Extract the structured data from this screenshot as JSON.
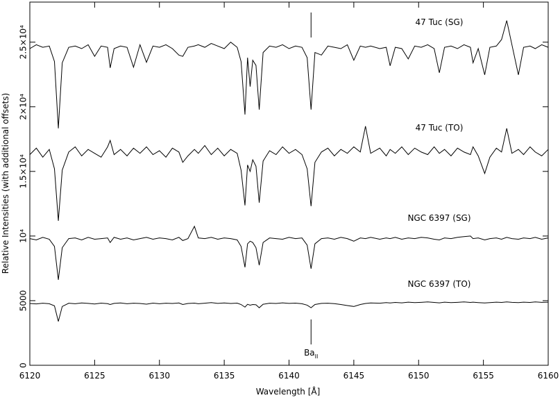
{
  "chart_data": {
    "type": "line",
    "xlabel": "Wavelength  [Å]",
    "ylabel": "Relative Intensities (with additional offsets)",
    "xlim": [
      6120,
      6160
    ],
    "ylim": [
      0,
      28100
    ],
    "xticks": [
      6120,
      6125,
      6130,
      6135,
      6140,
      6145,
      6150,
      6155,
      6160
    ],
    "yticks": [
      0,
      5000,
      {
        "value": 10000,
        "label": "10⁴"
      },
      {
        "value": 15000,
        "label": "1.5×10⁴"
      },
      {
        "value": 20000,
        "label": "2×10⁴"
      },
      {
        "value": 25000,
        "label": "2.5×10⁴"
      }
    ],
    "annotation": {
      "text": "Ba",
      "subscript": "II",
      "x": 6141.7
    },
    "x": [
      6120,
      6120.5,
      6121,
      6121.5,
      6121.9,
      6122.2,
      6122.5,
      6123,
      6123.5,
      6124,
      6124.5,
      6125,
      6125.5,
      6126,
      6126.2,
      6126.5,
      6127,
      6127.5,
      6128,
      6128.5,
      6129,
      6129.5,
      6130,
      6130.5,
      6131,
      6131.5,
      6131.8,
      6132.2,
      6132.7,
      6133,
      6133.5,
      6134,
      6134.5,
      6135,
      6135.5,
      6136,
      6136.3,
      6136.6,
      6136.8,
      6137,
      6137.2,
      6137.45,
      6137.7,
      6138,
      6138.5,
      6139,
      6139.5,
      6140,
      6140.5,
      6141,
      6141.4,
      6141.7,
      6142,
      6142.5,
      6143,
      6143.5,
      6144,
      6144.5,
      6145,
      6145.5,
      6145.9,
      6146.3,
      6147,
      6147.5,
      6147.8,
      6148.2,
      6148.7,
      6149.2,
      6149.7,
      6150.2,
      6150.7,
      6151.2,
      6151.6,
      6152,
      6152.5,
      6153,
      6153.5,
      6154,
      6154.2,
      6154.6,
      6155.1,
      6155.5,
      6156,
      6156.4,
      6156.8,
      6157.2,
      6157.7,
      6158.1,
      6158.6,
      6159,
      6159.5,
      6160
    ],
    "series": [
      {
        "name": "47 Tuc (SG)",
        "color": "#000000",
        "values": [
          24500,
          24800,
          24600,
          24700,
          23500,
          18330,
          23400,
          24600,
          24700,
          24500,
          24800,
          23900,
          24700,
          24600,
          23010,
          24500,
          24700,
          24600,
          23060,
          24800,
          23440,
          24700,
          24600,
          24800,
          24500,
          24000,
          23900,
          24600,
          24700,
          24800,
          24600,
          24900,
          24700,
          24500,
          25000,
          24600,
          23500,
          19400,
          23800,
          21560,
          23600,
          23200,
          19780,
          24200,
          24700,
          24600,
          24800,
          24500,
          24700,
          24600,
          23800,
          19780,
          24200,
          24000,
          24700,
          24600,
          24500,
          24800,
          23600,
          24700,
          24600,
          24700,
          24500,
          24600,
          23170,
          24600,
          24500,
          23700,
          24700,
          24600,
          24800,
          24500,
          22630,
          24600,
          24700,
          24500,
          24800,
          24600,
          23400,
          24500,
          22470,
          24600,
          24700,
          25200,
          26670,
          24800,
          22470,
          24600,
          24700,
          24500,
          24800,
          24600
        ]
      },
      {
        "name": "47 Tuc (TO)",
        "color": "#000000",
        "values": [
          16300,
          16800,
          16100,
          16700,
          15200,
          11180,
          15100,
          16500,
          16900,
          16200,
          16700,
          16400,
          16100,
          16900,
          17400,
          16300,
          16700,
          16200,
          16800,
          16400,
          16900,
          16300,
          16600,
          16100,
          16800,
          16500,
          15700,
          16200,
          16700,
          16400,
          17000,
          16300,
          16800,
          16200,
          16700,
          16400,
          15100,
          12370,
          15500,
          15000,
          15900,
          15400,
          12580,
          15800,
          16600,
          16300,
          16900,
          16400,
          16700,
          16300,
          15200,
          12310,
          15700,
          16500,
          16800,
          16200,
          16700,
          16400,
          16900,
          16500,
          18500,
          16400,
          16800,
          16200,
          16700,
          16400,
          16900,
          16300,
          16800,
          16500,
          16300,
          16900,
          16400,
          16700,
          16200,
          16800,
          16500,
          16300,
          16900,
          16200,
          14840,
          16100,
          16800,
          16500,
          18330,
          16400,
          16700,
          16300,
          16900,
          16500,
          16200,
          16700
        ]
      },
      {
        "name": "NGC 6397 (SG)",
        "color": "#000000",
        "values": [
          9800,
          9700,
          9900,
          9750,
          9200,
          6610,
          9100,
          9800,
          9850,
          9700,
          9900,
          9750,
          9800,
          9850,
          9500,
          9900,
          9750,
          9850,
          9700,
          9800,
          9900,
          9750,
          9850,
          9800,
          9700,
          9900,
          9650,
          9800,
          10750,
          9850,
          9800,
          9900,
          9750,
          9850,
          9800,
          9700,
          9200,
          7580,
          9400,
          9600,
          9500,
          9100,
          7740,
          9500,
          9850,
          9800,
          9750,
          9900,
          9800,
          9850,
          9300,
          7470,
          9400,
          9800,
          9850,
          9750,
          9900,
          9800,
          9600,
          9850,
          9800,
          9900,
          9750,
          9850,
          9800,
          9900,
          9750,
          9850,
          9800,
          9900,
          9850,
          9750,
          9700,
          9850,
          9800,
          9900,
          9950,
          10000,
          9800,
          9850,
          9700,
          9800,
          9850,
          9750,
          9900,
          9800,
          9750,
          9850,
          9800,
          9900,
          9750,
          9850
        ]
      },
      {
        "name": "NGC 6397 (TO)",
        "color": "#000000",
        "values": [
          4780,
          4750,
          4800,
          4760,
          4600,
          3390,
          4550,
          4800,
          4760,
          4820,
          4790,
          4740,
          4810,
          4770,
          4700,
          4790,
          4820,
          4760,
          4800,
          4780,
          4730,
          4810,
          4760,
          4800,
          4780,
          4820,
          4700,
          4780,
          4810,
          4760,
          4800,
          4850,
          4790,
          4820,
          4780,
          4810,
          4700,
          4500,
          4720,
          4650,
          4700,
          4680,
          4450,
          4720,
          4800,
          4780,
          4830,
          4790,
          4810,
          4760,
          4650,
          4450,
          4700,
          4790,
          4800,
          4770,
          4700,
          4620,
          4550,
          4700,
          4780,
          4820,
          4800,
          4850,
          4820,
          4860,
          4830,
          4880,
          4850,
          4870,
          4900,
          4860,
          4830,
          4880,
          4850,
          4870,
          4900,
          4860,
          4880,
          4850,
          4820,
          4850,
          4880,
          4860,
          4900,
          4870,
          4850,
          4880,
          4860,
          4900,
          4870,
          4880
        ]
      }
    ]
  }
}
